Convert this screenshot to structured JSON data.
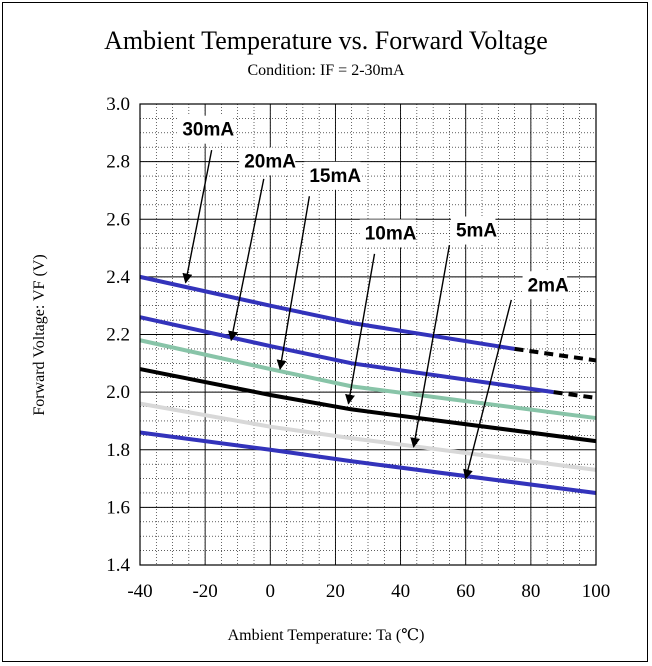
{
  "chart_data": {
    "type": "line",
    "title": "Ambient Temperature vs. Forward Voltage",
    "subtitle": "Condition: IF = 2-30mA",
    "xlabel": "Ambient Temperature: Ta (℃)",
    "ylabel": "Forward Voltage:  VF (V)",
    "xlim": [
      -40,
      100
    ],
    "ylim": [
      1.4,
      3.0
    ],
    "x_ticks": [
      "-40",
      "-20",
      "0",
      "20",
      "40",
      "60",
      "80",
      "100"
    ],
    "y_ticks": [
      "1.4",
      "1.6",
      "1.8",
      "2.0",
      "2.2",
      "2.4",
      "2.6",
      "2.8",
      "3.0"
    ],
    "grid": true,
    "series": [
      {
        "name": "30mA",
        "color": "#3333bb",
        "x": [
          -40,
          0,
          25,
          75
        ],
        "y": [
          2.4,
          2.3,
          2.24,
          2.15
        ],
        "dashed_x": [
          75,
          100
        ],
        "dashed_y": [
          2.15,
          2.11
        ]
      },
      {
        "name": "20mA",
        "color": "#3333bb",
        "x": [
          -40,
          0,
          25,
          87
        ],
        "y": [
          2.26,
          2.16,
          2.1,
          2.0
        ],
        "dashed_x": [
          87,
          100
        ],
        "dashed_y": [
          2.0,
          1.98
        ]
      },
      {
        "name": "15mA",
        "color": "#88c4a8",
        "x": [
          -40,
          0,
          25,
          100
        ],
        "y": [
          2.18,
          2.08,
          2.02,
          1.91
        ]
      },
      {
        "name": "10mA",
        "color": "#000000",
        "x": [
          -40,
          0,
          25,
          100
        ],
        "y": [
          2.08,
          1.99,
          1.94,
          1.83
        ]
      },
      {
        "name": "5mA",
        "color": "#d8d8d8",
        "x": [
          -40,
          0,
          25,
          100
        ],
        "y": [
          1.96,
          1.88,
          1.84,
          1.73
        ]
      },
      {
        "name": "2mA",
        "color": "#3333bb",
        "x": [
          -40,
          0,
          25,
          100
        ],
        "y": [
          1.86,
          1.8,
          1.76,
          1.65
        ]
      }
    ],
    "annotations": [
      {
        "text": "30mA",
        "label_x": -27,
        "label_y": 2.89,
        "tail_x": -18,
        "tail_y": 2.84,
        "head_x": -26,
        "head_y": 2.38
      },
      {
        "text": "20mA",
        "label_x": -8,
        "label_y": 2.78,
        "tail_x": -2,
        "tail_y": 2.74,
        "head_x": -12,
        "head_y": 2.18
      },
      {
        "text": "15mA",
        "label_x": 12,
        "label_y": 2.73,
        "tail_x": 12,
        "tail_y": 2.68,
        "head_x": 3,
        "head_y": 2.08
      },
      {
        "text": "10mA",
        "label_x": 29,
        "label_y": 2.53,
        "tail_x": 32,
        "tail_y": 2.48,
        "head_x": 24,
        "head_y": 1.96
      },
      {
        "text": "5mA",
        "label_x": 57,
        "label_y": 2.54,
        "tail_x": 55,
        "tail_y": 2.51,
        "head_x": 44,
        "head_y": 1.81
      },
      {
        "text": "2mA",
        "label_x": 79,
        "label_y": 2.35,
        "tail_x": 74,
        "tail_y": 2.32,
        "head_x": 60,
        "head_y": 1.7
      }
    ]
  }
}
